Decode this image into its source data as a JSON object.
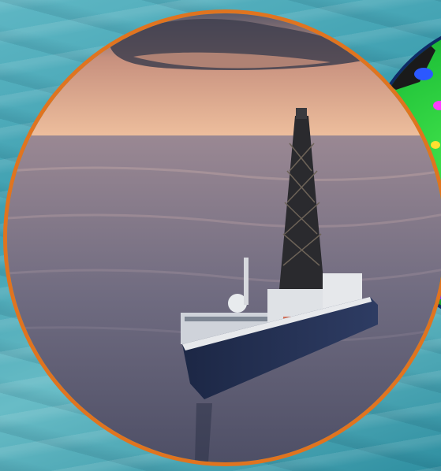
{
  "scene": {
    "photo_subject": "drilling-ship",
    "map_subject": "global-sea-level-map"
  },
  "colors": {
    "frame_orange": "#e0741f",
    "frame_navy": "#0e2b66",
    "water_teal": "#4aa8b8",
    "sky_peach": "#e9b493"
  }
}
